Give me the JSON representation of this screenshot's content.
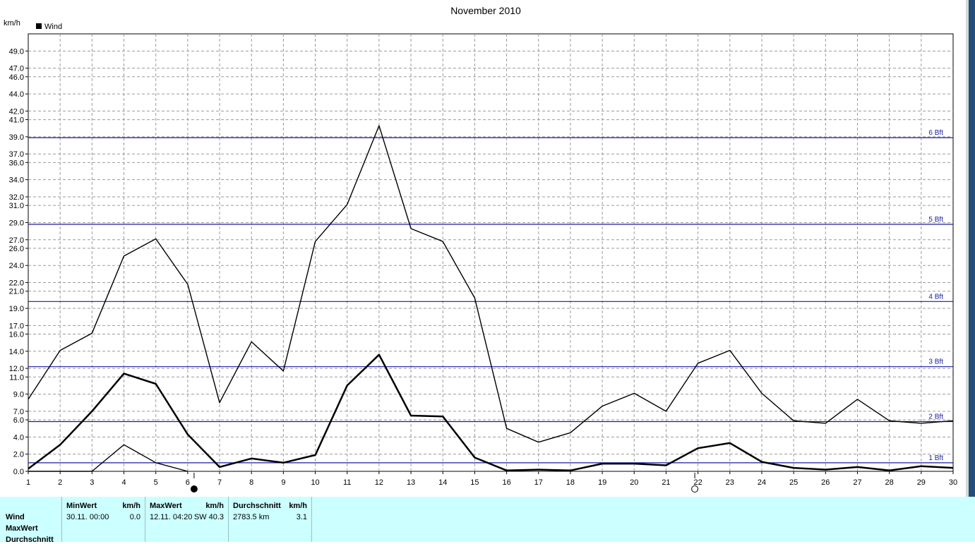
{
  "chart_data": {
    "type": "line",
    "title": "November 2010",
    "ylabel": "km/h",
    "legend": [
      {
        "name": "Wind",
        "color": "#000000"
      }
    ],
    "legend_position": "top-left",
    "grid": true,
    "xlim": [
      1,
      30
    ],
    "ylim": [
      0,
      51
    ],
    "x": [
      1,
      2,
      3,
      4,
      5,
      6,
      7,
      8,
      9,
      10,
      11,
      12,
      13,
      14,
      15,
      16,
      17,
      18,
      19,
      20,
      21,
      22,
      23,
      24,
      25,
      26,
      27,
      28,
      29,
      30
    ],
    "x_tick_labels": [
      "1",
      "2",
      "3",
      "4",
      "5",
      "6",
      "7",
      "8",
      "9",
      "10",
      "11",
      "12",
      "13",
      "14",
      "15",
      "16",
      "17",
      "18",
      "19",
      "20",
      "21",
      "22",
      "23",
      "24",
      "25",
      "26",
      "27",
      "28",
      "29",
      "30"
    ],
    "y_tick_labels": [
      "0.0",
      "2.0",
      "4.0",
      "6.0",
      "7.0",
      "9.0",
      "11.0",
      "12.0",
      "14.0",
      "16.0",
      "17.0",
      "19.0",
      "21.0",
      "22.0",
      "24.0",
      "26.0",
      "27.0",
      "29.0",
      "31.0",
      "32.0",
      "34.0",
      "36.0",
      "37.0",
      "39.0",
      "41.0",
      "42.0",
      "44.0",
      "46.0",
      "47.0",
      "49.0"
    ],
    "series": [
      {
        "values": [
          8.4,
          14.1,
          16.1,
          25.1,
          27.1,
          21.8,
          8.0,
          15.1,
          11.7,
          26.8,
          31.1,
          40.3,
          28.3,
          26.8,
          20.2,
          5.0,
          3.4,
          4.5,
          7.6,
          9.1,
          7.0,
          12.6,
          14.1,
          9.1,
          5.9,
          5.6,
          8.4,
          5.9,
          5.6,
          5.9
        ],
        "stroke_width": 1.4,
        "color": "#000000"
      },
      {
        "values": [
          0.3,
          3.1,
          7.0,
          11.4,
          10.2,
          4.3,
          0.5,
          1.5,
          1.0,
          1.9,
          10.0,
          13.6,
          6.5,
          6.4,
          1.6,
          0.1,
          0.2,
          0.1,
          0.9,
          0.9,
          0.7,
          2.7,
          3.3,
          1.1,
          0.4,
          0.2,
          0.5,
          0.1,
          0.6,
          0.4
        ],
        "stroke_width": 2.5,
        "color": "#000000"
      },
      {
        "values": [
          0.0,
          0.0,
          0.0,
          3.1,
          1.0,
          0.0,
          null,
          null,
          null,
          null,
          null,
          null,
          null,
          null,
          null,
          null,
          null,
          null,
          null,
          null,
          null,
          null,
          null,
          null,
          null,
          null,
          null,
          null,
          null,
          null
        ],
        "stroke_width": 1.4,
        "color": "#000000"
      }
    ],
    "reference_lines": [
      {
        "value": 1.0,
        "label": "1 Bft",
        "color": "#1a1aa0"
      },
      {
        "value": 5.8,
        "label": "2 Bft",
        "color": "#1a1aa0"
      },
      {
        "value": 12.2,
        "label": "3 Bft",
        "color": "#1a1aa0"
      },
      {
        "value": 19.8,
        "label": "4 Bft",
        "color": "#1a1aa0"
      },
      {
        "value": 28.8,
        "label": "5 Bft",
        "color": "#1a1aa0"
      },
      {
        "value": 38.9,
        "label": "6 Bft",
        "color": "#1a1aa0"
      }
    ],
    "moon_markers": [
      {
        "x": 6.2,
        "phase": "new-moon"
      },
      {
        "x": 21.9,
        "phase": "full-moon"
      }
    ]
  },
  "stats": {
    "row_labels": [
      "Wind",
      "MaxWert",
      "Durchschnitt"
    ],
    "min": {
      "title": "MinWert",
      "unit": "km/h",
      "date": "30.11.  00:00",
      "value": "0.0"
    },
    "max": {
      "title": "MaxWert",
      "unit": "km/h",
      "date": "12.11.  04:20",
      "value": "SW 40.3"
    },
    "avg": {
      "title": "Durchschnitt",
      "unit": "km/h",
      "date": "2783.5 km",
      "value": "3.1"
    }
  }
}
